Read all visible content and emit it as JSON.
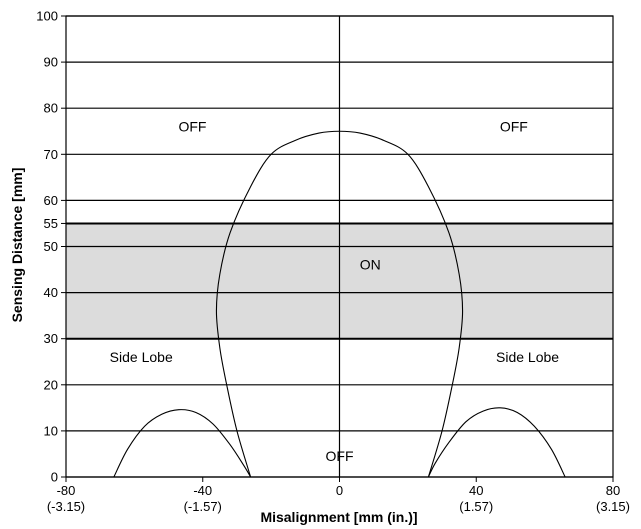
{
  "chart_data": {
    "type": "line",
    "xlabel": "Misalignment [mm (in.)]",
    "ylabel": "Sensing Distance [mm]",
    "xlim": [
      -80,
      80
    ],
    "ylim": [
      0,
      100
    ],
    "x_ticks": [
      {
        "value": -80,
        "label": "-80",
        "sub": "(-3.15)"
      },
      {
        "value": -40,
        "label": "-40",
        "sub": "(-1.57)"
      },
      {
        "value": 0,
        "label": "0",
        "sub": ""
      },
      {
        "value": 40,
        "label": "40",
        "sub": "(1.57)"
      },
      {
        "value": 80,
        "label": "80",
        "sub": "(3.15)"
      }
    ],
    "y_ticks": [
      0,
      10,
      20,
      30,
      40,
      50,
      55,
      60,
      70,
      80,
      90,
      100
    ],
    "grid": "horizontal",
    "shaded_band": {
      "y_from": 30,
      "y_to": 55,
      "color": "#dcdcdc"
    },
    "series": [
      {
        "values": [
          {
            "x": -26,
            "y": 0
          },
          {
            "x": -30,
            "y": 10
          },
          {
            "x": -33,
            "y": 20
          },
          {
            "x": -35,
            "y": 28
          },
          {
            "x": -36,
            "y": 36
          },
          {
            "x": -35,
            "y": 44
          },
          {
            "x": -32,
            "y": 53
          },
          {
            "x": -26,
            "y": 63
          },
          {
            "x": -20,
            "y": 70
          },
          {
            "x": -13,
            "y": 73
          },
          {
            "x": -6,
            "y": 74.6
          },
          {
            "x": 0,
            "y": 75
          },
          {
            "x": 6,
            "y": 74.6
          },
          {
            "x": 13,
            "y": 73
          },
          {
            "x": 20,
            "y": 70
          },
          {
            "x": 26,
            "y": 63
          },
          {
            "x": 32,
            "y": 53
          },
          {
            "x": 35,
            "y": 44
          },
          {
            "x": 36,
            "y": 36
          },
          {
            "x": 35,
            "y": 28
          },
          {
            "x": 33,
            "y": 20
          },
          {
            "x": 30,
            "y": 10
          },
          {
            "x": 26,
            "y": 0
          }
        ]
      },
      {
        "values": [
          {
            "x": -66,
            "y": 0
          },
          {
            "x": -62,
            "y": 6
          },
          {
            "x": -57,
            "y": 11
          },
          {
            "x": -52,
            "y": 13.6
          },
          {
            "x": -47,
            "y": 14.6
          },
          {
            "x": -42,
            "y": 14
          },
          {
            "x": -37,
            "y": 11.5
          },
          {
            "x": -32,
            "y": 7
          },
          {
            "x": -28,
            "y": 2.5
          },
          {
            "x": -26,
            "y": 0
          }
        ]
      },
      {
        "values": [
          {
            "x": 26,
            "y": 0
          },
          {
            "x": 28,
            "y": 3
          },
          {
            "x": 32,
            "y": 7.5
          },
          {
            "x": 37,
            "y": 12
          },
          {
            "x": 42,
            "y": 14.3
          },
          {
            "x": 47,
            "y": 15
          },
          {
            "x": 52,
            "y": 14
          },
          {
            "x": 57,
            "y": 11
          },
          {
            "x": 62,
            "y": 6
          },
          {
            "x": 66,
            "y": 0
          }
        ]
      }
    ],
    "annotations": [
      {
        "text": "OFF",
        "x": -43,
        "y": 75
      },
      {
        "text": "OFF",
        "x": 51,
        "y": 75
      },
      {
        "text": "ON",
        "x": 9,
        "y": 45
      },
      {
        "text": "Side Lobe",
        "x": -58,
        "y": 25
      },
      {
        "text": "Side Lobe",
        "x": 55,
        "y": 25
      },
      {
        "text": "OFF",
        "x": 0,
        "y": 3.5
      }
    ]
  }
}
